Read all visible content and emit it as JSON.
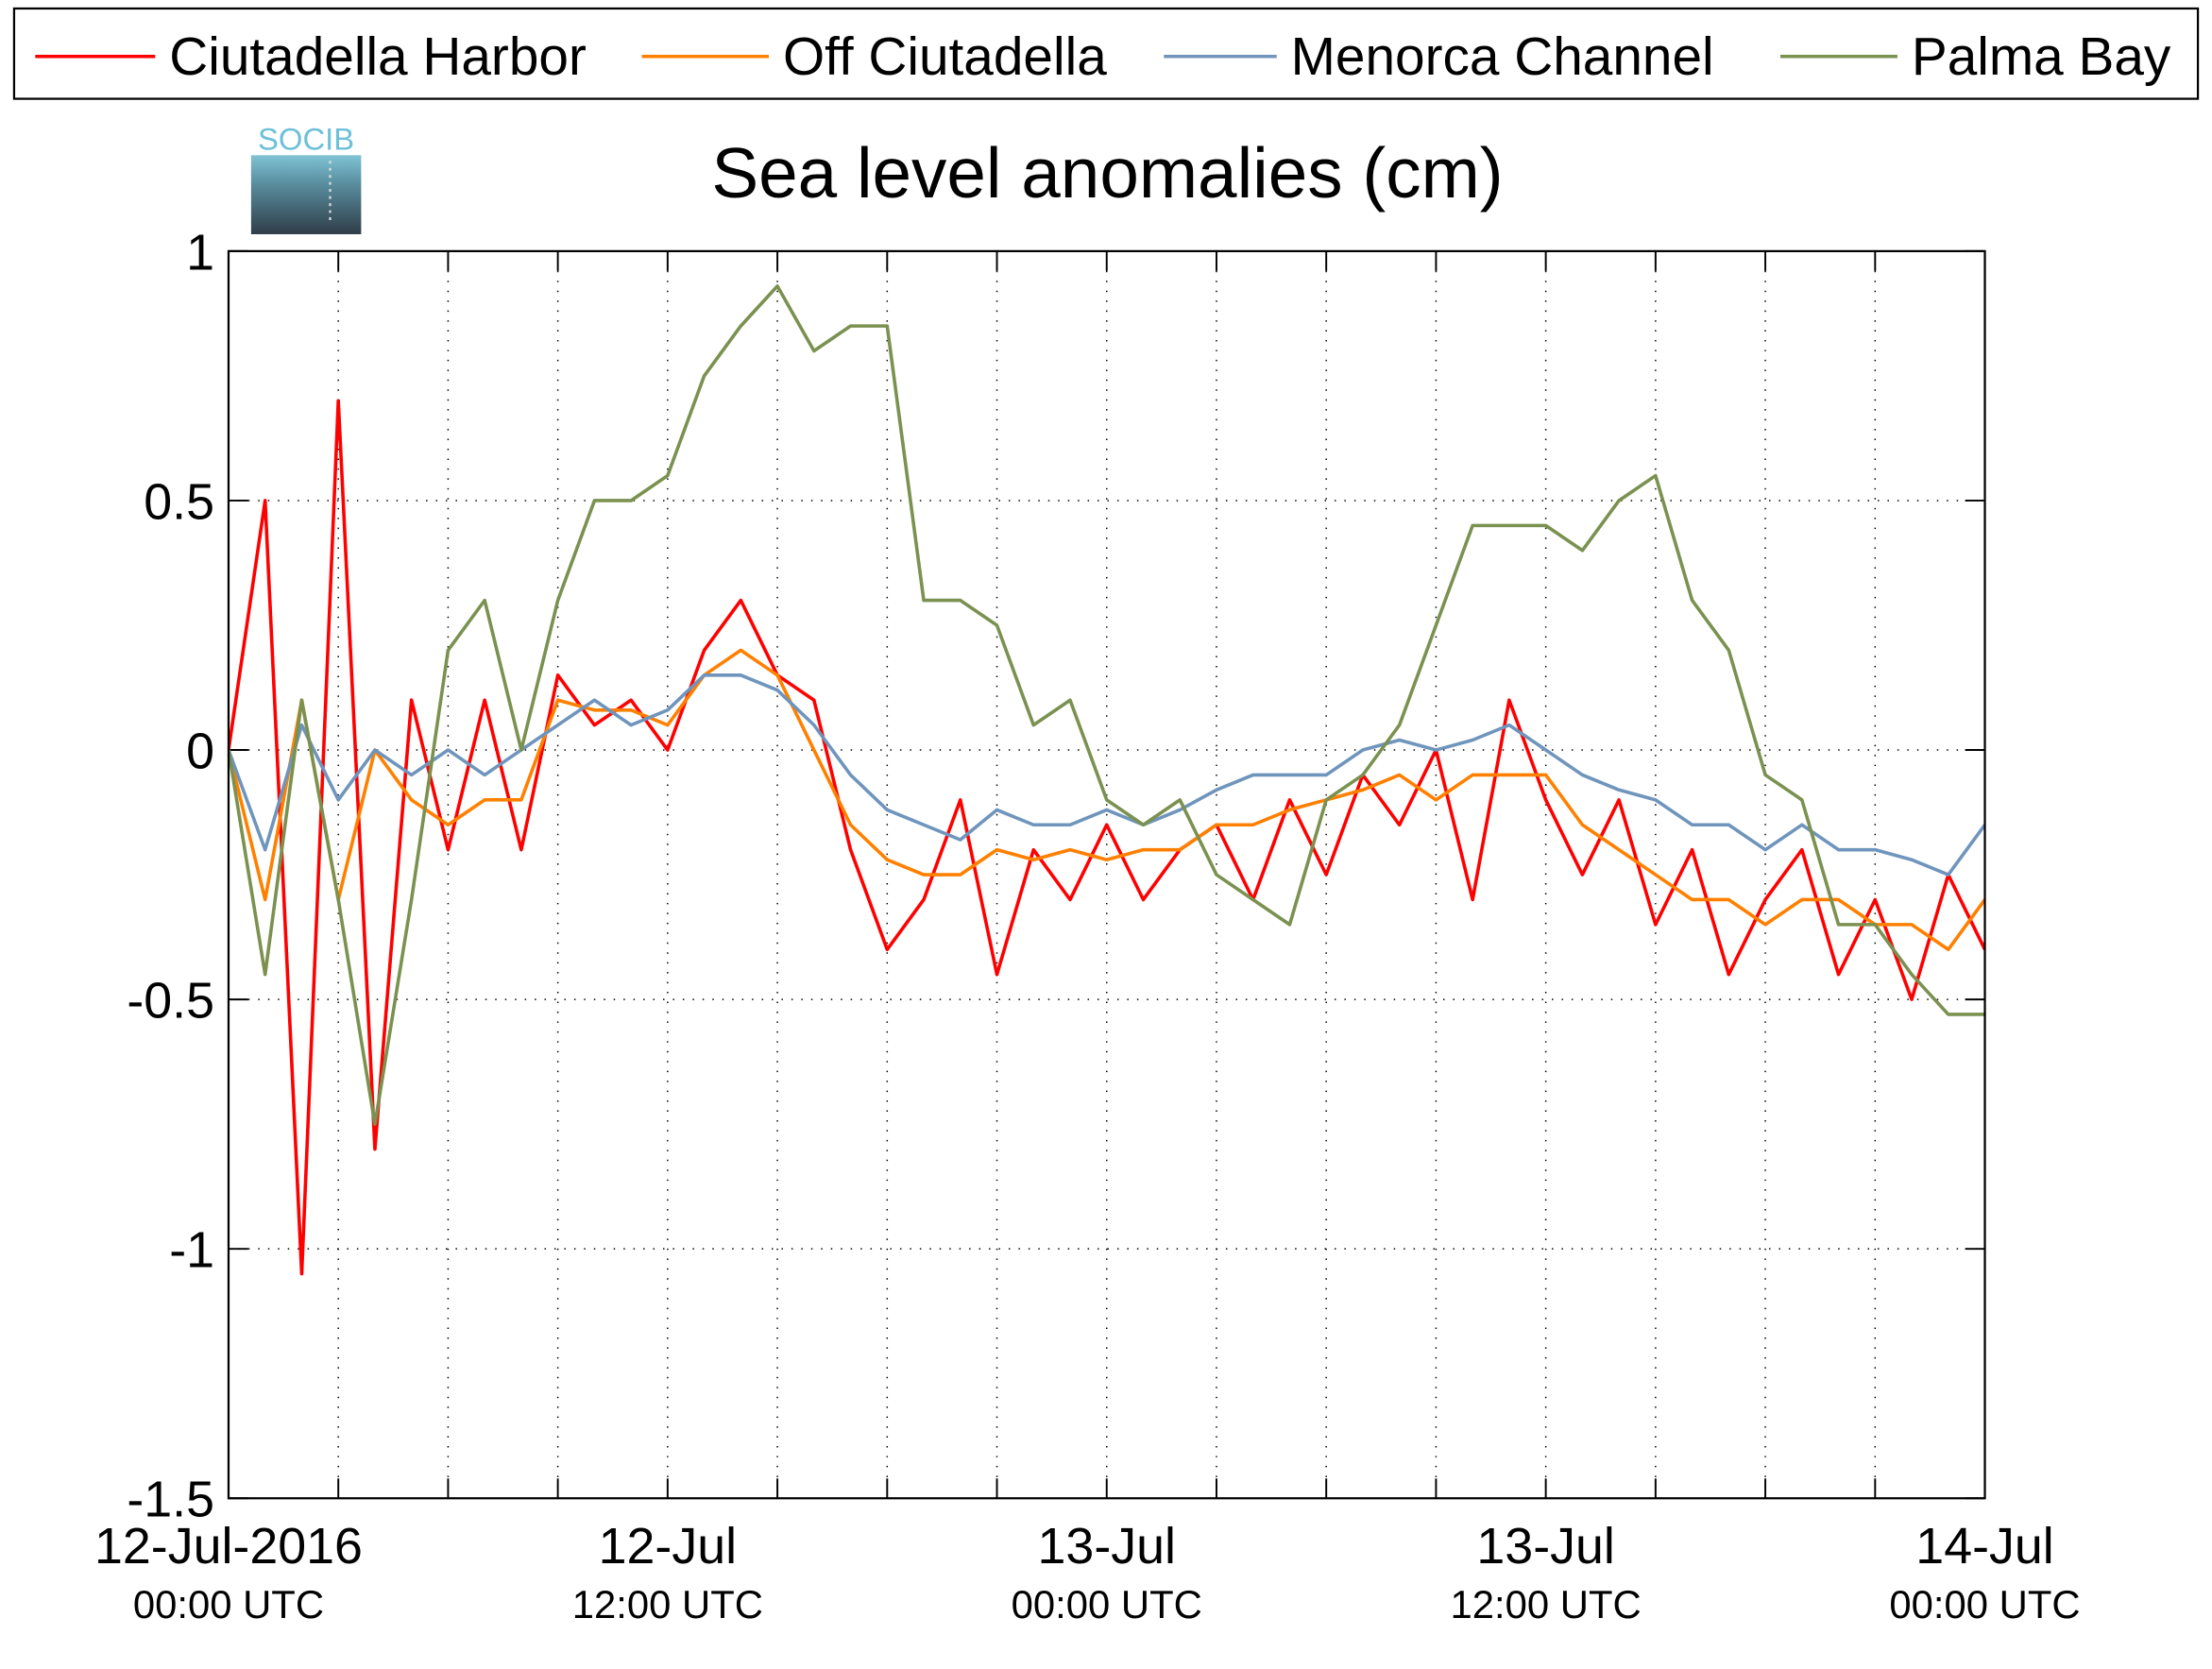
{
  "chart_data": {
    "type": "line",
    "title": "Sea level anomalies (cm)",
    "logo_text": "SOCIB",
    "legend": "top",
    "grid": true,
    "xlim": [
      0,
      48
    ],
    "xticks": [
      {
        "value": 0,
        "label": [
          "12-Jul-2016",
          "00:00 UTC"
        ]
      },
      {
        "value": 12,
        "label": [
          "12-Jul",
          "12:00 UTC"
        ]
      },
      {
        "value": 24,
        "label": [
          "13-Jul",
          "00:00 UTC"
        ]
      },
      {
        "value": 36,
        "label": [
          "13-Jul",
          "12:00 UTC"
        ]
      },
      {
        "value": 48,
        "label": [
          "14-Jul",
          "00:00 UTC"
        ]
      }
    ],
    "xticks_minor": [
      3,
      6,
      9,
      15,
      18,
      21,
      27,
      30,
      33,
      39,
      42,
      45
    ],
    "ylim": [
      -1.5,
      1
    ],
    "yticks": [
      -1.5,
      -1,
      -0.5,
      0,
      0.5,
      1
    ],
    "x": [
      0,
      1,
      2,
      3,
      4,
      5,
      6,
      7,
      8,
      9,
      10,
      11,
      12,
      13,
      14,
      15,
      16,
      17,
      18,
      19,
      20,
      21,
      22,
      23,
      24,
      25,
      26,
      27,
      28,
      29,
      30,
      31,
      32,
      33,
      34,
      35,
      36,
      37,
      38,
      39,
      40,
      41,
      42,
      43,
      44,
      45,
      46,
      47,
      48
    ],
    "series": [
      {
        "name": "Ciutadella Harbor",
        "color": "#ff0000",
        "values": [
          0.0,
          0.5,
          -1.05,
          0.7,
          -0.8,
          0.1,
          -0.2,
          0.1,
          -0.2,
          0.15,
          0.05,
          0.1,
          0.0,
          0.2,
          0.3,
          0.15,
          0.1,
          -0.2,
          -0.4,
          -0.3,
          -0.1,
          -0.45,
          -0.2,
          -0.3,
          -0.15,
          -0.3,
          -0.2,
          -0.15,
          -0.3,
          -0.1,
          -0.25,
          -0.05,
          -0.15,
          0.0,
          -0.3,
          0.1,
          -0.1,
          -0.25,
          -0.1,
          -0.35,
          -0.2,
          -0.45,
          -0.3,
          -0.2,
          -0.45,
          -0.3,
          -0.5,
          -0.25,
          -0.4
        ]
      },
      {
        "name": "Off Ciutadella",
        "color": "#ff8000",
        "values": [
          0.0,
          -0.3,
          0.1,
          -0.3,
          0.0,
          -0.1,
          -0.15,
          -0.1,
          -0.1,
          0.1,
          0.08,
          0.08,
          0.05,
          0.15,
          0.2,
          0.15,
          0.0,
          -0.15,
          -0.22,
          -0.25,
          -0.25,
          -0.2,
          -0.22,
          -0.2,
          -0.22,
          -0.2,
          -0.2,
          -0.15,
          -0.15,
          -0.12,
          -0.1,
          -0.08,
          -0.05,
          -0.1,
          -0.05,
          -0.05,
          -0.05,
          -0.15,
          -0.2,
          -0.25,
          -0.3,
          -0.3,
          -0.35,
          -0.3,
          -0.3,
          -0.35,
          -0.35,
          -0.4,
          -0.3
        ]
      },
      {
        "name": "Menorca Channel",
        "color": "#6f95bd",
        "values": [
          0.0,
          -0.2,
          0.05,
          -0.1,
          0.0,
          -0.05,
          0.0,
          -0.05,
          0.0,
          0.05,
          0.1,
          0.05,
          0.08,
          0.15,
          0.15,
          0.12,
          0.05,
          -0.05,
          -0.12,
          -0.15,
          -0.18,
          -0.12,
          -0.15,
          -0.15,
          -0.12,
          -0.15,
          -0.12,
          -0.08,
          -0.05,
          -0.05,
          -0.05,
          0.0,
          0.02,
          0.0,
          0.02,
          0.05,
          0.0,
          -0.05,
          -0.08,
          -0.1,
          -0.15,
          -0.15,
          -0.2,
          -0.15,
          -0.2,
          -0.2,
          -0.22,
          -0.25,
          -0.15
        ]
      },
      {
        "name": "Palma Bay",
        "color": "#7a9150",
        "values": [
          0.0,
          -0.45,
          0.1,
          -0.3,
          -0.75,
          -0.3,
          0.2,
          0.3,
          0.0,
          0.3,
          0.5,
          0.5,
          0.55,
          0.75,
          0.85,
          0.93,
          0.8,
          0.85,
          0.85,
          0.3,
          0.3,
          0.25,
          0.05,
          0.1,
          -0.1,
          -0.15,
          -0.1,
          -0.25,
          -0.3,
          -0.35,
          -0.1,
          -0.05,
          0.05,
          0.25,
          0.45,
          0.45,
          0.45,
          0.4,
          0.5,
          0.55,
          0.3,
          0.2,
          -0.05,
          -0.1,
          -0.35,
          -0.35,
          -0.45,
          -0.53,
          -0.53
        ]
      }
    ]
  }
}
